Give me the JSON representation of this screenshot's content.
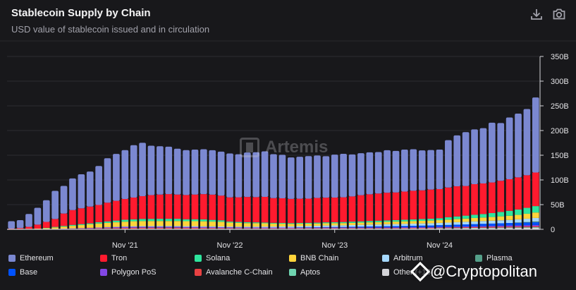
{
  "header": {
    "title": "Stablecoin Supply by Chain",
    "subtitle": "USD value of stablecoin issued and in circulation",
    "download_icon": "download-icon",
    "camera_icon": "camera-icon"
  },
  "watermark": {
    "text": "Artemis"
  },
  "credit": {
    "text": "@Cryptopolitan"
  },
  "chart_data": {
    "type": "bar",
    "stacked": true,
    "title": "Stablecoin Supply by Chain",
    "subtitle": "USD value of stablecoin issued and in circulation",
    "x_tick_labels": [
      {
        "label": "Nov '21",
        "index": 13
      },
      {
        "label": "Nov '22",
        "index": 25
      },
      {
        "label": "Nov '23",
        "index": 37
      },
      {
        "label": "Nov '24",
        "index": 49
      }
    ],
    "y_tick_labels": [
      "0",
      "50B",
      "100B",
      "150B",
      "200B",
      "250B",
      "300B",
      "350B"
    ],
    "ylim": [
      0,
      350
    ],
    "y_unit": "B USD",
    "grid": true,
    "legend_position": "bottom",
    "series": [
      {
        "name": "Ethereum",
        "color": "#7b88d1",
        "values": [
          15,
          16,
          26,
          34,
          44,
          57,
          56,
          64,
          69,
          71,
          79,
          90,
          95,
          99,
          106,
          108,
          100,
          98,
          96,
          93,
          91,
          91,
          91,
          90,
          89,
          89,
          87,
          90,
          91,
          92,
          89,
          88,
          84,
          85,
          86,
          86,
          84,
          87,
          88,
          85,
          85,
          85,
          84,
          86,
          84,
          85,
          84,
          81,
          80,
          80,
          96,
          103,
          109,
          111,
          112,
          121,
          117,
          125,
          129,
          134,
          152
        ]
      },
      {
        "name": "Tron",
        "color": "#ff1a2e",
        "values": [
          1,
          2,
          4,
          8,
          12,
          16,
          25,
          30,
          32,
          34,
          35,
          38,
          40,
          42,
          44,
          46,
          48,
          49,
          50,
          49,
          49,
          50,
          51,
          51,
          50,
          49,
          50,
          51,
          51,
          52,
          50,
          50,
          49,
          49,
          49,
          50,
          50,
          50,
          50,
          51,
          53,
          54,
          55,
          56,
          56,
          57,
          58,
          58,
          59,
          59,
          60,
          61,
          60,
          62,
          62,
          62,
          63,
          64,
          65,
          66,
          68
        ]
      },
      {
        "name": "Solana",
        "color": "#2ee59d",
        "values": [
          0,
          0,
          0,
          0,
          0.5,
          1,
          1.5,
          2,
          2,
          2,
          2.5,
          3,
          3.5,
          4,
          4,
          4.5,
          4.5,
          4.5,
          4.5,
          4.5,
          4,
          4,
          4,
          3.5,
          3,
          2,
          2,
          2,
          1.8,
          1.7,
          1.6,
          1.6,
          1.6,
          1.7,
          1.8,
          1.8,
          2,
          2,
          2.2,
          2.5,
          2.6,
          2.8,
          3,
          3,
          3.2,
          3.4,
          3.6,
          3.8,
          3.8,
          4,
          5,
          5.5,
          6,
          6.5,
          7,
          8,
          9,
          10,
          11,
          12,
          13
        ]
      },
      {
        "name": "BNB Chain",
        "color": "#ffd43b",
        "values": [
          0,
          0,
          0.5,
          1,
          2,
          3,
          4,
          5,
          6,
          7,
          8,
          8.5,
          9,
          9.5,
          10,
          10,
          10,
          10,
          10,
          10,
          10,
          10,
          10,
          9.5,
          9.5,
          8,
          7.5,
          7,
          6.8,
          6.5,
          6,
          5.5,
          5,
          4.8,
          4.6,
          4.5,
          4.4,
          4.4,
          4.4,
          4.5,
          4.5,
          4.6,
          4.7,
          4.8,
          5,
          5,
          5,
          5.2,
          5.4,
          5.5,
          6,
          6.2,
          6.5,
          7,
          7.2,
          7.5,
          8,
          8.5,
          9,
          10,
          11
        ]
      },
      {
        "name": "Arbitrum",
        "color": "#a5d8ff",
        "values": [
          0,
          0,
          0,
          0,
          0,
          0,
          0,
          0,
          0,
          0,
          0.3,
          0.5,
          0.8,
          1,
          1.2,
          1.4,
          1.5,
          1.6,
          1.6,
          1.6,
          1.6,
          1.6,
          1.6,
          1.6,
          1.6,
          1.6,
          1.6,
          1.8,
          1.8,
          1.9,
          2,
          2.2,
          2.4,
          2.6,
          2.8,
          3,
          3.2,
          3.3,
          3.4,
          3.5,
          3.6,
          3.7,
          3.8,
          4,
          4,
          4.2,
          4.3,
          4.4,
          4.5,
          4.6,
          4.8,
          5,
          5.2,
          5.4,
          5.6,
          5.8,
          6,
          6.2,
          6.4,
          6.6,
          7
        ]
      },
      {
        "name": "Plasma",
        "color": "#55a08a",
        "values": [
          0,
          0,
          0,
          0,
          0,
          0,
          0,
          0,
          0,
          0,
          0,
          0,
          0,
          0,
          0,
          0,
          0,
          0,
          0,
          0,
          0,
          0,
          0,
          0,
          0,
          0,
          0,
          0,
          0,
          0,
          0,
          0,
          0,
          0,
          0,
          0,
          0,
          0,
          0,
          0,
          0,
          0,
          0,
          0,
          0,
          0,
          0,
          0,
          0,
          0,
          0,
          0,
          0,
          0,
          0,
          0,
          0,
          0,
          0.5,
          1,
          1.5
        ]
      },
      {
        "name": "Base",
        "color": "#0052ff",
        "values": [
          0,
          0,
          0,
          0,
          0,
          0,
          0,
          0,
          0,
          0,
          0,
          0,
          0,
          0,
          0,
          0,
          0,
          0,
          0,
          0,
          0,
          0,
          0,
          0,
          0,
          0,
          0,
          0,
          0,
          0,
          0,
          0,
          0,
          0.2,
          0.3,
          0.5,
          0.7,
          0.8,
          1,
          1.2,
          1.5,
          1.8,
          2,
          2.2,
          2.4,
          2.6,
          2.8,
          3,
          3.2,
          3.4,
          3.6,
          3.8,
          4,
          4.2,
          4.4,
          4.6,
          4.8,
          5,
          5.2,
          5.4,
          5.6
        ]
      },
      {
        "name": "Polygon PoS",
        "color": "#8247e5",
        "values": [
          0,
          0,
          0,
          0,
          0,
          0.3,
          0.5,
          0.8,
          1,
          1.2,
          1.4,
          1.6,
          1.8,
          2,
          2,
          2,
          2,
          2,
          2,
          2,
          1.8,
          1.8,
          1.8,
          1.8,
          1.6,
          1.6,
          1.5,
          1.5,
          1.5,
          1.5,
          1.4,
          1.4,
          1.4,
          1.4,
          1.4,
          1.4,
          1.4,
          1.4,
          1.4,
          1.4,
          1.4,
          1.4,
          1.4,
          1.4,
          1.4,
          1.4,
          1.5,
          1.5,
          1.5,
          1.6,
          1.6,
          1.7,
          1.8,
          1.9,
          2,
          2.1,
          2.2,
          2.3,
          2.4,
          2.5,
          2.6
        ]
      },
      {
        "name": "Avalanche C-Chain",
        "color": "#e84142",
        "values": [
          0,
          0,
          0,
          0,
          0,
          0,
          0.3,
          0.5,
          0.8,
          1,
          1.2,
          1.4,
          1.6,
          1.8,
          2,
          2,
          2,
          2,
          2,
          2,
          1.8,
          1.8,
          1.6,
          1.5,
          1.4,
          1.2,
          1.1,
          1,
          1,
          1,
          1,
          1,
          1,
          1,
          1,
          1,
          1,
          1,
          1,
          1,
          1,
          1,
          1,
          1,
          1,
          1,
          1.1,
          1.1,
          1.2,
          1.2,
          1.3,
          1.4,
          1.5,
          1.5,
          1.6,
          1.6,
          1.7,
          1.8,
          1.8,
          1.9,
          2
        ]
      },
      {
        "name": "Aptos",
        "color": "#6fd4b0",
        "values": [
          0,
          0,
          0,
          0,
          0,
          0,
          0,
          0,
          0,
          0,
          0,
          0,
          0,
          0,
          0,
          0,
          0,
          0,
          0,
          0,
          0,
          0,
          0,
          0,
          0,
          0,
          0,
          0,
          0,
          0,
          0,
          0,
          0,
          0,
          0,
          0,
          0,
          0,
          0,
          0,
          0,
          0,
          0,
          0,
          0,
          0,
          0,
          0,
          0,
          0.2,
          0.3,
          0.4,
          0.5,
          0.6,
          0.7,
          0.8,
          0.9,
          1,
          1.1,
          1.2,
          1.3
        ]
      },
      {
        "name": "Other (+18)",
        "color": "#d4d4d8",
        "values": [
          0.5,
          0.5,
          0.5,
          0.5,
          0.5,
          0.6,
          0.6,
          0.7,
          0.7,
          0.8,
          0.9,
          1,
          1,
          1.1,
          1.1,
          1.2,
          1.2,
          1.2,
          1.2,
          1.2,
          1.2,
          1.2,
          1.2,
          1.2,
          1.2,
          1.2,
          1.2,
          1.2,
          1.2,
          1.2,
          1.2,
          1.2,
          1.2,
          1.3,
          1.3,
          1.3,
          1.4,
          1.4,
          1.4,
          1.5,
          1.5,
          1.6,
          1.6,
          1.7,
          1.7,
          1.8,
          1.8,
          1.9,
          1.9,
          2,
          2,
          2.1,
          2.2,
          2.3,
          2.4,
          2.5,
          2.6,
          2.7,
          2.8,
          2.9,
          3
        ]
      }
    ]
  }
}
